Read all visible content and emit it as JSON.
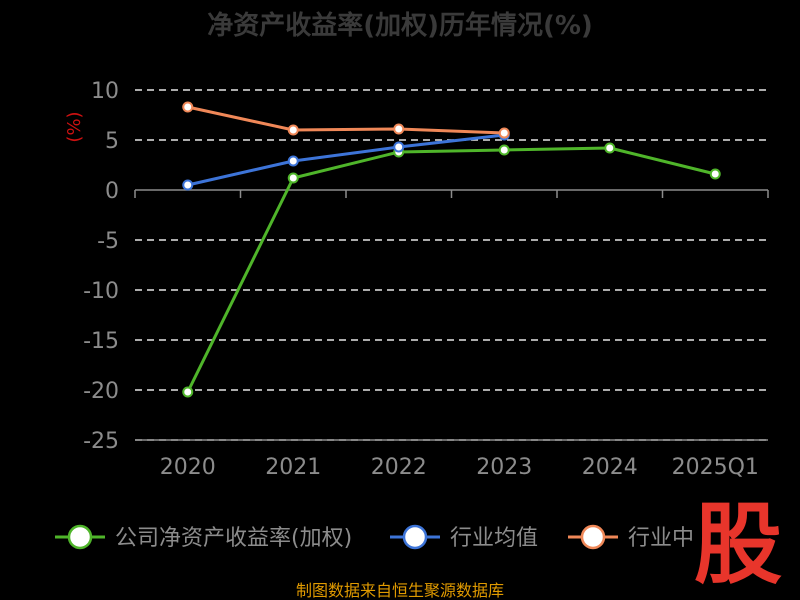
{
  "chart_data": {
    "type": "line",
    "title": "净资产收益率(加权)历年情况(%)",
    "ylabel": "(%)",
    "categories": [
      "2020",
      "2021",
      "2022",
      "2023",
      "2024",
      "2025Q1"
    ],
    "ylim": [
      -25,
      10
    ],
    "yticks": [
      10,
      5,
      0,
      -5,
      -10,
      -15,
      -20,
      -25
    ],
    "grid": "horizontal dashed",
    "legend_position": "bottom",
    "series": [
      {
        "name": "公司净资产收益率(加权)",
        "color": "#4fb52a",
        "values": [
          -20.2,
          1.2,
          3.8,
          4.0,
          4.2,
          1.6
        ]
      },
      {
        "name": "行业均值",
        "color": "#3d74d8",
        "values": [
          0.5,
          2.9,
          4.3,
          5.5,
          null,
          null
        ]
      },
      {
        "name": "行业中",
        "color": "#f08858",
        "values": [
          8.3,
          6.0,
          6.1,
          5.7,
          null,
          null
        ]
      }
    ]
  },
  "source_text": "制图数据来自恒生聚源数据库",
  "logo_text": "股"
}
